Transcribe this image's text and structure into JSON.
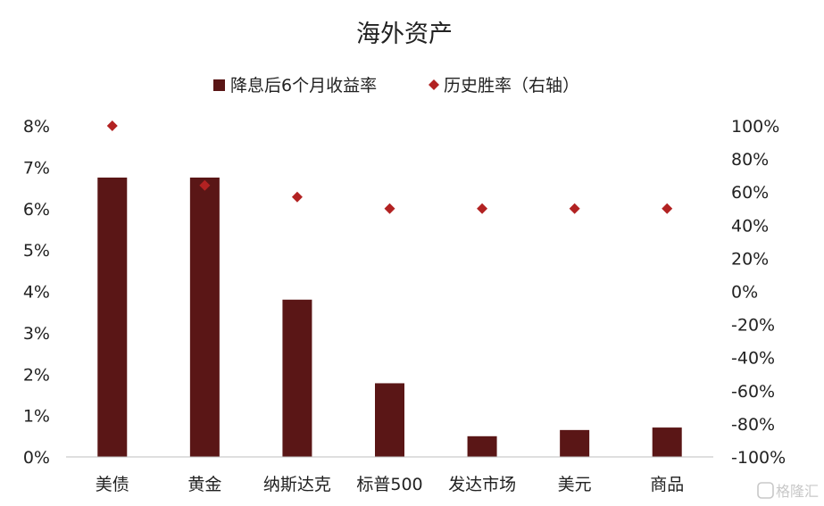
{
  "chart_data": {
    "type": "bar",
    "title": "海外资产",
    "categories": [
      "美债",
      "黄金",
      "纳斯达克",
      "标普500",
      "发达市场",
      "美元",
      "商品"
    ],
    "series": [
      {
        "name": "降息后6个月收益率",
        "kind": "bar",
        "axis": "left",
        "color": "#5a1616",
        "values": [
          6.75,
          6.75,
          3.8,
          1.78,
          0.5,
          0.65,
          0.71
        ]
      },
      {
        "name": "历史胜率（右轴）",
        "kind": "scatter",
        "axis": "right",
        "color": "#b22222",
        "values": [
          100,
          64,
          57,
          50,
          50,
          50,
          50
        ]
      }
    ],
    "ylim_left": [
      0,
      8
    ],
    "ylim_right": [
      -100,
      100
    ],
    "yticks_left": [
      "0%",
      "1%",
      "2%",
      "3%",
      "4%",
      "5%",
      "6%",
      "7%",
      "8%"
    ],
    "yticks_right": [
      "-100%",
      "-80%",
      "-60%",
      "-40%",
      "-20%",
      "0%",
      "20%",
      "40%",
      "60%",
      "80%",
      "100%"
    ],
    "grid": false,
    "legend_position": "top"
  },
  "watermark": {
    "text": "格隆汇",
    "icon": "g-logo-icon"
  }
}
